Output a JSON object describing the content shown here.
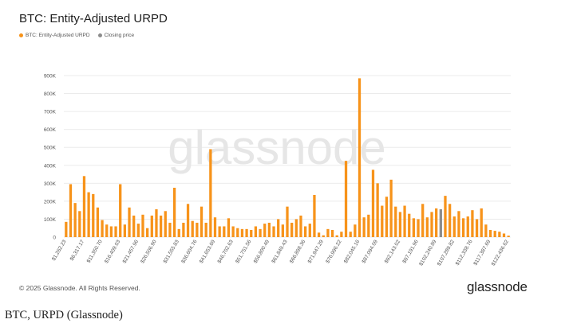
{
  "header": {
    "title": "BTC: Entity-Adjusted URPD"
  },
  "legend": [
    {
      "label": "BTC: Entity-Adjusted URPD",
      "color": "#F7931A"
    },
    {
      "label": "Closing price",
      "color": "#8C8C8C"
    }
  ],
  "watermark": "glassnode",
  "footer": {
    "copyright": "© 2025 Glassnode. All Rights Reserved.",
    "brand": "glassnode"
  },
  "caption": "BTC, URPD (Glassnode)",
  "colors": {
    "bar": "#F7931A",
    "highlight": "#8C8C8C",
    "grid": "#EBEBEB",
    "axis_text": "#555555"
  },
  "chart_data": {
    "type": "bar",
    "title": "BTC: Entity-Adjusted URPD",
    "xlabel": "",
    "ylabel": "",
    "ylim": [
      0,
      900000
    ],
    "y_ticks": [
      0,
      100000,
      200000,
      300000,
      400000,
      500000,
      600000,
      700000,
      800000,
      900000
    ],
    "y_tick_labels": [
      "0",
      "100K",
      "200K",
      "300K",
      "400K",
      "500K",
      "600K",
      "700K",
      "800K",
      "900K"
    ],
    "x_tick_labels": [
      "$1,262.23",
      "$6,317.17",
      "$11,350.70",
      "$16,409.03",
      "$21,457.96",
      "$26,506.90",
      "$31,555.83",
      "$36,604.76",
      "$41,653.69",
      "$46,702.63",
      "$51,751.56",
      "$56,800.49",
      "$61,849.43",
      "$66,898.36",
      "$71,947.29",
      "$76,996.22",
      "$82,045.16",
      "$87,094.09",
      "$92,143.02",
      "$97,191.96",
      "$102,240.89",
      "$107,289.82",
      "$112,338.76",
      "$117,387.69",
      "$122,436.62"
    ],
    "bin_range": [
      1262.23,
      124961.09
    ],
    "highlight_index": 83,
    "grid": true,
    "legend_position": "top-left",
    "series": [
      {
        "name": "BTC: Entity-Adjusted URPD",
        "values": [
          85000,
          295000,
          190000,
          145000,
          340000,
          250000,
          240000,
          165000,
          95000,
          70000,
          60000,
          60000,
          295000,
          70000,
          165000,
          120000,
          75000,
          125000,
          50000,
          120000,
          155000,
          120000,
          145000,
          80000,
          275000,
          45000,
          80000,
          185000,
          90000,
          80000,
          170000,
          80000,
          490000,
          110000,
          60000,
          60000,
          105000,
          60000,
          50000,
          45000,
          45000,
          40000,
          60000,
          45000,
          75000,
          80000,
          60000,
          100000,
          70000,
          170000,
          80000,
          100000,
          120000,
          60000,
          75000,
          235000,
          25000,
          10000,
          45000,
          40000,
          10000,
          30000,
          425000,
          30000,
          70000,
          885000,
          110000,
          125000,
          375000,
          300000,
          175000,
          225000,
          320000,
          170000,
          140000,
          175000,
          130000,
          105000,
          100000,
          185000,
          110000,
          140000,
          160000,
          155000,
          230000,
          185000,
          115000,
          145000,
          105000,
          115000,
          150000,
          100000,
          160000,
          70000,
          40000,
          35000,
          30000,
          20000,
          8000
        ]
      }
    ]
  }
}
